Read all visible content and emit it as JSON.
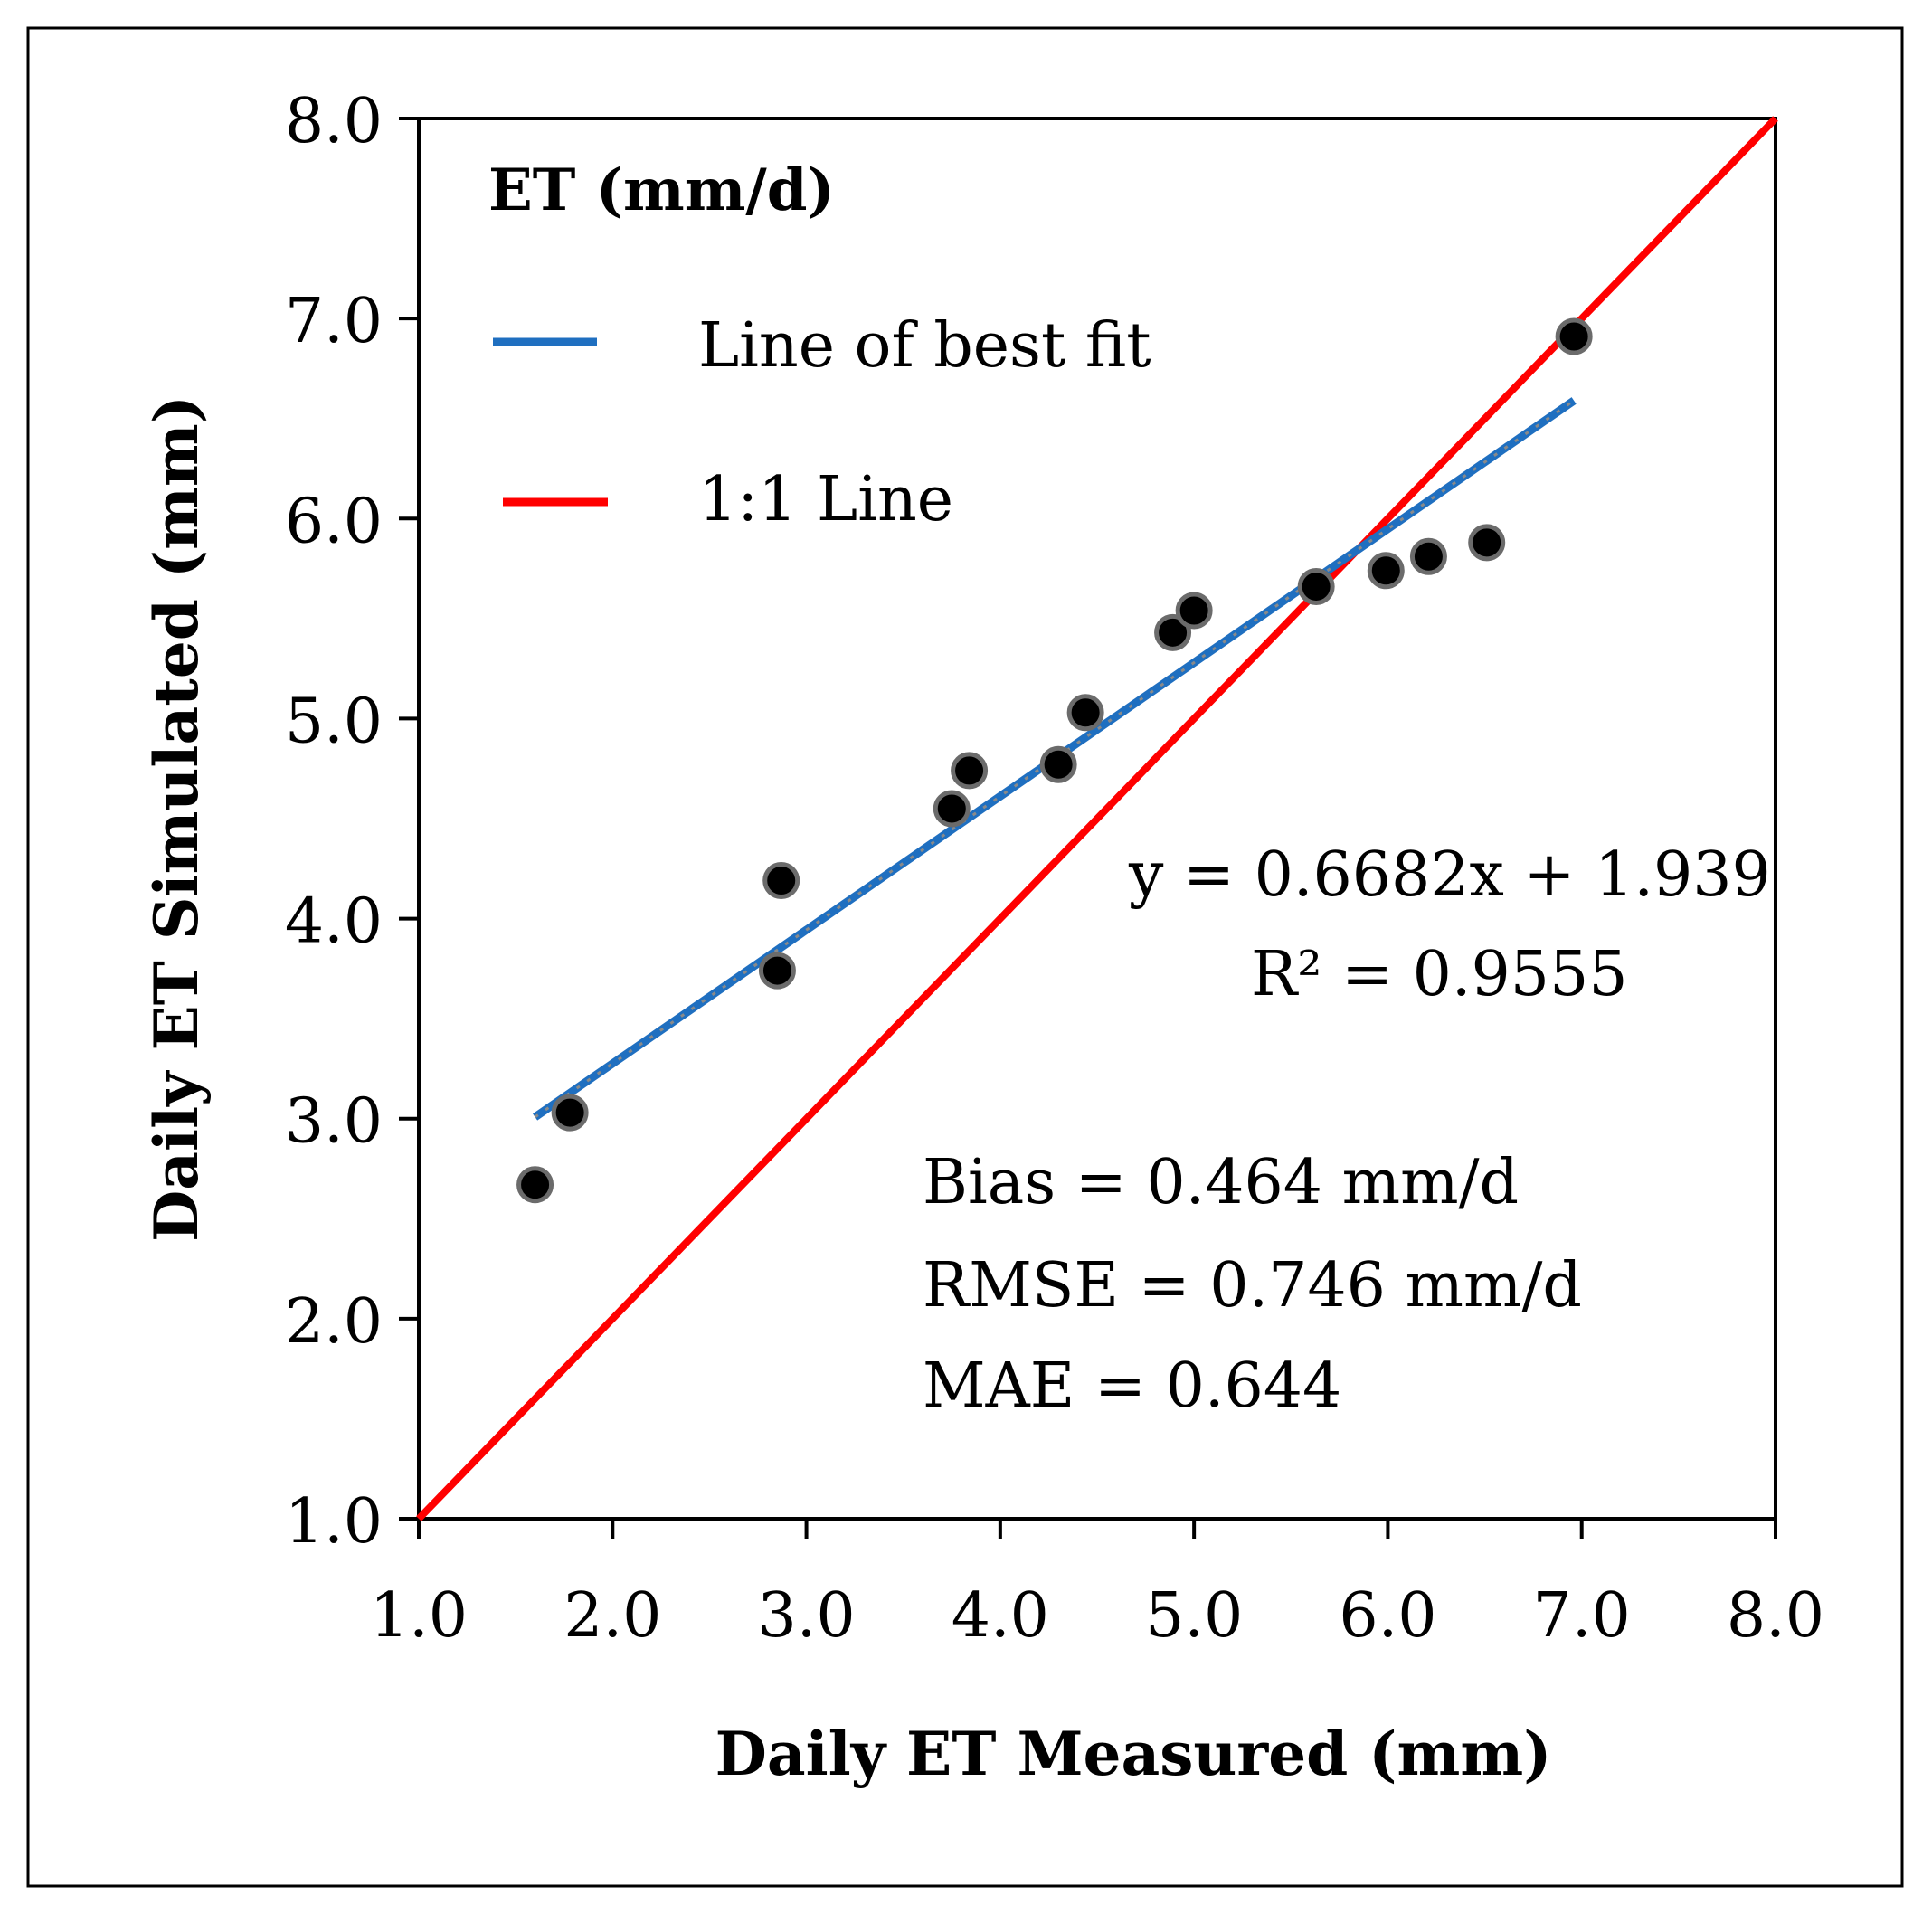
{
  "chart_data": {
    "type": "scatter",
    "panel_title": "ET (mm/d)",
    "xlabel": "Daily ET Measured (mm)",
    "ylabel": "Daily ET Simulated (mm)",
    "xlim": [
      1.0,
      8.0
    ],
    "ylim": [
      1.0,
      8.0
    ],
    "x_ticks": [
      1.0,
      2.0,
      3.0,
      4.0,
      5.0,
      6.0,
      7.0,
      8.0
    ],
    "y_ticks": [
      1.0,
      2.0,
      3.0,
      4.0,
      5.0,
      6.0,
      7.0,
      8.0
    ],
    "x_tick_labels": [
      "1.0",
      "2.0",
      "3.0",
      "4.0",
      "5.0",
      "6.0",
      "7.0",
      "8.0"
    ],
    "y_tick_labels": [
      "1.0",
      "2.0",
      "3.0",
      "4.0",
      "5.0",
      "6.0",
      "7.0",
      "8.0"
    ],
    "grid": false,
    "points": {
      "x": [
        1.6,
        1.78,
        2.85,
        2.87,
        3.75,
        3.84,
        4.3,
        4.44,
        4.89,
        5.0,
        5.63,
        5.99,
        6.21,
        6.51,
        6.96
      ],
      "y": [
        2.67,
        3.03,
        3.74,
        4.19,
        4.55,
        4.74,
        4.77,
        5.03,
        5.43,
        5.54,
        5.66,
        5.74,
        5.81,
        5.88,
        6.91
      ]
    },
    "fit_line": {
      "slope": 0.6682,
      "intercept": 1.939,
      "x_range": [
        1.6,
        6.96
      ]
    },
    "identity_line": {
      "x_range": [
        1.0,
        8.0
      ]
    },
    "legend": {
      "position": "top-left",
      "entries": [
        {
          "label": "Line of best fit",
          "color": "#1f6fc0"
        },
        {
          "label": "1:1 Line",
          "color": "#ff0000"
        }
      ]
    },
    "annotations": {
      "equation": "y = 0.6682x + 1.939",
      "r2": "R² = 0.9555",
      "bias": "Bias = 0.464 mm/d",
      "rmse": "RMSE = 0.746 mm/d",
      "mae": "MAE = 0.644"
    },
    "colors": {
      "fit": "#1f6fc0",
      "fit_dash": "#8a8a8a",
      "identity": "#ff0000",
      "marker_fill": "#000000",
      "marker_edge": "#6b6b6b",
      "axis": "#000000"
    }
  }
}
